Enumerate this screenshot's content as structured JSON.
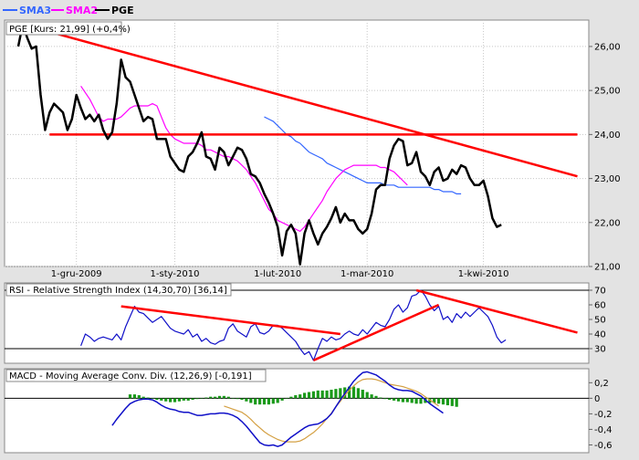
{
  "legend": [
    {
      "label": "SMA3",
      "color": "#3366ff"
    },
    {
      "label": "SMA2",
      "color": "#ff00ff"
    },
    {
      "label": "PGE",
      "color": "#000000"
    }
  ],
  "colors": {
    "price": "#000000",
    "sma_long": "#3366ff",
    "sma_short": "#ff00ff",
    "trendline": "#ff0000",
    "rsi": "#1010c8",
    "macd": "#1010c8",
    "signal": "#d4a043",
    "hist": "#1a9a1a",
    "panel_bg": "#ffffff",
    "frame_bg": "#e3e3e3"
  },
  "chart_data": [
    {
      "type": "line",
      "title": "PGE [Kurs: 21,99] (+0,4%)",
      "x_labels": [
        "1-gru-2009",
        "1-sty-2010",
        "1-lut-2010",
        "1-mar-2010",
        "1-kwi-2010"
      ],
      "x_label_index": [
        13,
        35,
        58,
        78,
        104
      ],
      "ylim": [
        21,
        26.6
      ],
      "yticks": [
        21,
        22,
        23,
        24,
        25,
        26
      ],
      "ytick_labels": [
        "21,00",
        "22,00",
        "23,00",
        "24,00",
        "25,00",
        "26,00"
      ],
      "series": [
        {
          "name": "PGE",
          "values": [
            26.0,
            26.5,
            26.2,
            25.95,
            26.0,
            24.9,
            24.1,
            24.5,
            24.7,
            24.6,
            24.5,
            24.1,
            24.35,
            24.9,
            24.6,
            24.35,
            24.45,
            24.3,
            24.45,
            24.1,
            23.9,
            24.05,
            24.7,
            25.7,
            25.3,
            25.2,
            24.9,
            24.6,
            24.3,
            24.4,
            24.35,
            23.9,
            23.9,
            23.9,
            23.5,
            23.35,
            23.2,
            23.15,
            23.5,
            23.6,
            23.8,
            24.05,
            23.5,
            23.45,
            23.2,
            23.7,
            23.6,
            23.3,
            23.5,
            23.7,
            23.65,
            23.45,
            23.1,
            23.05,
            22.9,
            22.65,
            22.45,
            22.2,
            21.9,
            21.25,
            21.8,
            21.95,
            21.75,
            21.05,
            21.75,
            22.05,
            21.75,
            21.5,
            21.75,
            21.9,
            22.1,
            22.35,
            22.0,
            22.2,
            22.05,
            22.05,
            21.85,
            21.75,
            21.85,
            22.2,
            22.75,
            22.85,
            22.85,
            23.45,
            23.75,
            23.9,
            23.85,
            23.3,
            23.35,
            23.6,
            23.15,
            23.05,
            22.85,
            23.15,
            23.25,
            22.95,
            23.0,
            23.2,
            23.1,
            23.3,
            23.25,
            23.0,
            22.85,
            22.85,
            22.95,
            22.6,
            22.1,
            21.9,
            21.95
          ]
        }
      ],
      "sma_short": {
        "name": "SMA2",
        "start": 14,
        "values": [
          25.1,
          24.95,
          24.8,
          24.6,
          24.4,
          24.3,
          24.35,
          24.35,
          24.35,
          24.4,
          24.5,
          24.6,
          24.65,
          24.65,
          24.65,
          24.65,
          24.7,
          24.65,
          24.4,
          24.15,
          24.0,
          23.9,
          23.85,
          23.8,
          23.8,
          23.8,
          23.8,
          23.75,
          23.65,
          23.65,
          23.6,
          23.55,
          23.5,
          23.5,
          23.45,
          23.4,
          23.3,
          23.2,
          23.05,
          22.9,
          22.7,
          22.5,
          22.3,
          22.2,
          22.05,
          22.0,
          21.95,
          21.9,
          21.85,
          21.8,
          21.9,
          22.05,
          22.2,
          22.35,
          22.5,
          22.7,
          22.85,
          23.0,
          23.1,
          23.2,
          23.25,
          23.3,
          23.3,
          23.3,
          23.3,
          23.3,
          23.3,
          23.25,
          23.25,
          23.2,
          23.15,
          23.05,
          22.95,
          22.85
        ]
      },
      "sma_long": {
        "name": "SMA3",
        "start": 55,
        "values": [
          24.4,
          24.35,
          24.3,
          24.2,
          24.1,
          24.0,
          23.95,
          23.85,
          23.8,
          23.7,
          23.6,
          23.55,
          23.5,
          23.45,
          23.35,
          23.3,
          23.25,
          23.2,
          23.15,
          23.1,
          23.05,
          23.0,
          22.95,
          22.9,
          22.9,
          22.9,
          22.9,
          22.85,
          22.85,
          22.85,
          22.8,
          22.8,
          22.8,
          22.8,
          22.8,
          22.8,
          22.8,
          22.8,
          22.75,
          22.75,
          22.7,
          22.7,
          22.7,
          22.65,
          22.65
        ]
      },
      "lines": [
        {
          "x1": 1,
          "y1": 26.5,
          "x2": 125,
          "y2": 23.05
        },
        {
          "x1": 7,
          "y1": 24.0,
          "x2": 125,
          "y2": 24.0
        }
      ]
    },
    {
      "type": "line",
      "title": "RSI - Relative Strength Index (14,30,70) [36,14]",
      "ylim": [
        20,
        75
      ],
      "yticks": [
        30,
        40,
        50,
        60,
        70
      ],
      "ytick_labels": [
        "30",
        "40",
        "50",
        "60",
        "70"
      ],
      "hlines": [
        30,
        70
      ],
      "series": [
        {
          "name": "RSI",
          "start": 14,
          "values": [
            32,
            40,
            38,
            35,
            37,
            38,
            37,
            36,
            40,
            36,
            45,
            52,
            59,
            55,
            54,
            51,
            48,
            50,
            52,
            48,
            44,
            42,
            41,
            40,
            43,
            38,
            40,
            35,
            37,
            34,
            33,
            35,
            36,
            44,
            47,
            42,
            40,
            38,
            45,
            47,
            41,
            40,
            42,
            46,
            46,
            44,
            41,
            38,
            35,
            30,
            26,
            28,
            22,
            30,
            37,
            35,
            38,
            36,
            37,
            40,
            42,
            40,
            39,
            43,
            40,
            44,
            48,
            46,
            45,
            50,
            57,
            60,
            55,
            58,
            66,
            67,
            70,
            66,
            60,
            56,
            59,
            50,
            52,
            48,
            54,
            51,
            55,
            52,
            55,
            58,
            55,
            52,
            46,
            38,
            34,
            36
          ]
        }
      ],
      "lines": [
        {
          "x1": 23,
          "y1": 59,
          "x2": 72,
          "y2": 40
        },
        {
          "x1": 66,
          "y1": 22,
          "x2": 94,
          "y2": 60
        },
        {
          "x1": 89,
          "y1": 70,
          "x2": 125,
          "y2": 41
        }
      ]
    },
    {
      "type": "bar",
      "title": "MACD - Moving Average Conv. Div. (12,26,9) [-0,191]",
      "ylim": [
        -0.7,
        0.38
      ],
      "yticks": [
        -0.6,
        -0.4,
        -0.2,
        0.0,
        0.2
      ],
      "ytick_labels": [
        "-0,6",
        "-0,4",
        "-0,2",
        "0",
        "0,2"
      ],
      "hlines": [
        0.0
      ],
      "series": [
        {
          "name": "MACD",
          "start": 21,
          "values": [
            -0.35,
            -0.27,
            -0.2,
            -0.13,
            -0.07,
            -0.04,
            -0.02,
            -0.01,
            -0.01,
            -0.02,
            -0.05,
            -0.09,
            -0.12,
            -0.14,
            -0.15,
            -0.17,
            -0.18,
            -0.18,
            -0.2,
            -0.22,
            -0.22,
            -0.21,
            -0.2,
            -0.2,
            -0.19,
            -0.19,
            -0.2,
            -0.22,
            -0.25,
            -0.3,
            -0.36,
            -0.43,
            -0.5,
            -0.57,
            -0.6,
            -0.61,
            -0.6,
            -0.62,
            -0.6,
            -0.55,
            -0.5,
            -0.46,
            -0.42,
            -0.38,
            -0.35,
            -0.34,
            -0.33,
            -0.3,
            -0.26,
            -0.2,
            -0.11,
            -0.02,
            0.06,
            0.14,
            0.22,
            0.28,
            0.33,
            0.34,
            0.32,
            0.3,
            0.26,
            0.22,
            0.17,
            0.13,
            0.11,
            0.1,
            0.1,
            0.09,
            0.06,
            0.03,
            -0.02,
            -0.07,
            -0.11,
            -0.15,
            -0.19
          ]
        },
        {
          "name": "Signal",
          "start": 46,
          "values": [
            -0.1,
            -0.12,
            -0.14,
            -0.16,
            -0.18,
            -0.22,
            -0.27,
            -0.33,
            -0.38,
            -0.43,
            -0.47,
            -0.5,
            -0.53,
            -0.55,
            -0.56,
            -0.56,
            -0.56,
            -0.55,
            -0.52,
            -0.48,
            -0.44,
            -0.39,
            -0.33,
            -0.26,
            -0.19,
            -0.11,
            -0.04,
            0.04,
            0.1,
            0.16,
            0.21,
            0.24,
            0.25,
            0.25,
            0.24,
            0.22,
            0.2,
            0.18,
            0.17,
            0.16,
            0.15,
            0.13,
            0.11,
            0.09,
            0.06,
            0.02,
            -0.02,
            -0.06,
            -0.1
          ]
        },
        {
          "name": "Histogram",
          "start": 25,
          "values": [
            0.05,
            0.05,
            0.04,
            0.02,
            0.01,
            0.0,
            -0.02,
            -0.03,
            -0.04,
            -0.05,
            -0.05,
            -0.04,
            -0.03,
            -0.03,
            -0.02,
            -0.01,
            0.0,
            0.01,
            0.02,
            0.02,
            0.03,
            0.03,
            0.02,
            0.0,
            -0.01,
            -0.02,
            -0.04,
            -0.06,
            -0.08,
            -0.08,
            -0.08,
            -0.08,
            -0.07,
            -0.06,
            -0.03,
            0.0,
            0.02,
            0.04,
            0.05,
            0.07,
            0.08,
            0.09,
            0.1,
            0.1,
            0.1,
            0.11,
            0.12,
            0.13,
            0.14,
            0.15,
            0.15,
            0.13,
            0.11,
            0.08,
            0.05,
            0.03,
            0.01,
            -0.01,
            -0.02,
            -0.03,
            -0.04,
            -0.05,
            -0.05,
            -0.06,
            -0.07,
            -0.07,
            -0.06,
            -0.06,
            -0.06,
            -0.07,
            -0.08,
            -0.09,
            -0.1,
            -0.11
          ]
        }
      ]
    }
  ]
}
